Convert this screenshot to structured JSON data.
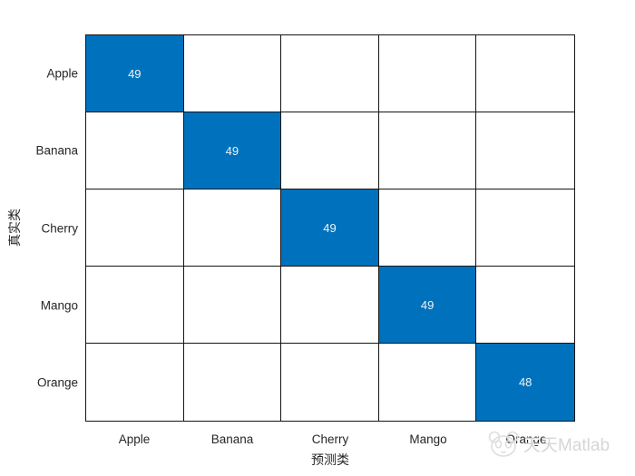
{
  "figure": {
    "background": "#ffffff"
  },
  "chart_data": {
    "type": "heatmap",
    "chart_kind": "confusion-matrix",
    "title": "",
    "xlabel": "预测类",
    "ylabel": "真实类",
    "x_categories": [
      "Apple",
      "Banana",
      "Cherry",
      "Mango",
      "Orange"
    ],
    "y_categories": [
      "Apple",
      "Banana",
      "Cherry",
      "Mango",
      "Orange"
    ],
    "matrix": [
      [
        49,
        0,
        0,
        0,
        0
      ],
      [
        0,
        49,
        0,
        0,
        0
      ],
      [
        0,
        0,
        49,
        0,
        0
      ],
      [
        0,
        0,
        0,
        49,
        0
      ],
      [
        0,
        0,
        0,
        0,
        48
      ]
    ],
    "display_rule": "zero cells rendered blank",
    "legend": "none",
    "grid": "on",
    "colors": {
      "filled_cell": "#0072BD",
      "empty_cell": "#ffffff",
      "cell_text": "#f2f2f2",
      "grid_line": "#141414",
      "tick_label": "#262626"
    }
  },
  "watermark": {
    "icon": "panda-face-icon",
    "text": "天天Matlab",
    "color": "#d6d6d6"
  }
}
